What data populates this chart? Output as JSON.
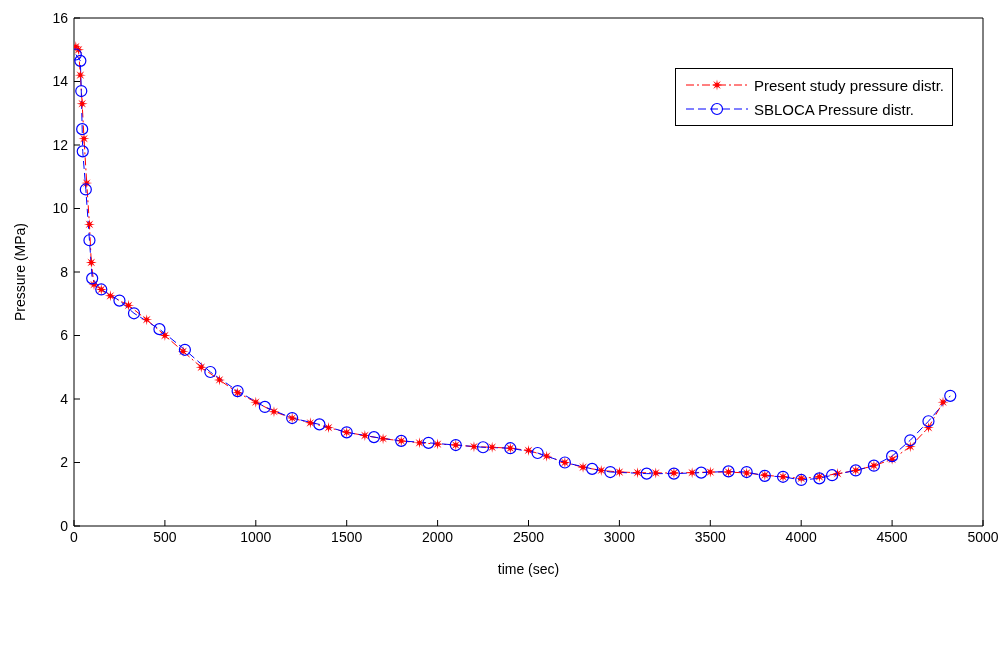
{
  "chart_data": {
    "type": "line",
    "xlabel": "time (sec)",
    "ylabel": "Pressure (MPa)",
    "xlim": [
      0,
      5000
    ],
    "ylim": [
      0,
      16
    ],
    "xticks": [
      0,
      500,
      1000,
      1500,
      2000,
      2500,
      3000,
      3500,
      4000,
      4500,
      5000
    ],
    "yticks": [
      0,
      2,
      4,
      6,
      8,
      10,
      12,
      14,
      16
    ],
    "grid": false,
    "legend": "top right",
    "series": [
      {
        "name": "Present study pressure distr.",
        "color": "#ff0000",
        "marker": "star",
        "line_style": "dashdot",
        "x": [
          10,
          25,
          35,
          45,
          55,
          70,
          85,
          95,
          110,
          150,
          200,
          300,
          400,
          500,
          600,
          700,
          800,
          900,
          1000,
          1100,
          1200,
          1300,
          1400,
          1500,
          1600,
          1700,
          1800,
          1900,
          2000,
          2100,
          2200,
          2300,
          2400,
          2500,
          2600,
          2700,
          2800,
          2900,
          3000,
          3100,
          3200,
          3300,
          3400,
          3500,
          3600,
          3700,
          3800,
          3900,
          4000,
          4100,
          4200,
          4300,
          4400,
          4500,
          4600,
          4700,
          4780
        ],
        "values": [
          15.1,
          15.0,
          14.2,
          13.3,
          12.2,
          10.8,
          9.5,
          8.3,
          7.6,
          7.45,
          7.25,
          6.95,
          6.5,
          6.0,
          5.5,
          5.0,
          4.6,
          4.2,
          3.9,
          3.6,
          3.4,
          3.25,
          3.1,
          2.95,
          2.85,
          2.75,
          2.68,
          2.62,
          2.58,
          2.55,
          2.5,
          2.48,
          2.45,
          2.38,
          2.2,
          2.0,
          1.85,
          1.75,
          1.7,
          1.68,
          1.67,
          1.67,
          1.68,
          1.7,
          1.7,
          1.67,
          1.6,
          1.55,
          1.5,
          1.55,
          1.65,
          1.75,
          1.9,
          2.1,
          2.5,
          3.1,
          3.9
        ]
      },
      {
        "name": "SBLOCA Pressure distr.",
        "color": "#0000ff",
        "marker": "circle",
        "line_style": "dashed",
        "x": [
          10,
          35,
          40,
          45,
          48,
          65,
          85,
          100,
          150,
          250,
          330,
          470,
          610,
          750,
          900,
          1050,
          1200,
          1350,
          1500,
          1650,
          1800,
          1950,
          2100,
          2250,
          2400,
          2550,
          2700,
          2850,
          2950,
          3150,
          3300,
          3450,
          3600,
          3700,
          3800,
          3900,
          4000,
          4100,
          4170,
          4300,
          4400,
          4500,
          4600,
          4700,
          4820
        ],
        "values": [
          14.85,
          14.65,
          13.7,
          12.5,
          11.8,
          10.6,
          9.0,
          7.8,
          7.45,
          7.1,
          6.7,
          6.2,
          5.55,
          4.85,
          4.25,
          3.75,
          3.4,
          3.2,
          2.95,
          2.8,
          2.68,
          2.62,
          2.55,
          2.48,
          2.45,
          2.3,
          2.0,
          1.8,
          1.7,
          1.65,
          1.65,
          1.68,
          1.72,
          1.7,
          1.58,
          1.55,
          1.45,
          1.5,
          1.6,
          1.75,
          1.9,
          2.2,
          2.7,
          3.3,
          4.1
        ]
      }
    ]
  }
}
